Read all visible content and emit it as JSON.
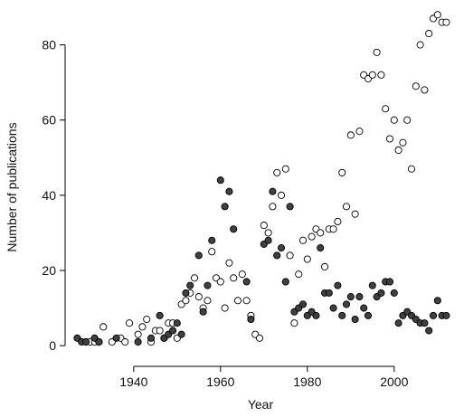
{
  "chart_data": {
    "type": "scatter",
    "xlabel": "Year",
    "ylabel": "Number of publications",
    "xlim": [
      1924.2,
      2014
    ],
    "ylim": [
      -5.5,
      90
    ],
    "xticks": [
      1940,
      1960,
      1980,
      2000
    ],
    "yticks": [
      0,
      20,
      40,
      60,
      80
    ],
    "grid": false,
    "series": [
      {
        "color": "#ffffff",
        "x": [
          1929,
          1930,
          1931,
          1932,
          1933,
          1935,
          1937,
          1938,
          1939,
          1941,
          1942,
          1943,
          1944,
          1945,
          1946,
          1947,
          1948,
          1949,
          1950,
          1951,
          1952,
          1953,
          1954,
          1955,
          1956,
          1957,
          1958,
          1959,
          1960,
          1961,
          1962,
          1963,
          1964,
          1965,
          1966,
          1967,
          1968,
          1969,
          1970,
          1971,
          1972,
          1973,
          1974,
          1975,
          1976,
          1977,
          1978,
          1979,
          1980,
          1981,
          1982,
          1983,
          1984,
          1985,
          1986,
          1987,
          1988,
          1989,
          1990,
          1991,
          1992,
          1993,
          1994,
          1995,
          1996,
          1997,
          1998,
          1999,
          2000,
          2001,
          2002,
          2003,
          2004,
          2005,
          2006,
          2007,
          2008,
          2009,
          2010,
          2011,
          2012
        ],
        "values": [
          1,
          1,
          1,
          1,
          5,
          1,
          2,
          1,
          6,
          3,
          5,
          7,
          1,
          4,
          4,
          2,
          6,
          6,
          2,
          11,
          12,
          14,
          18,
          13,
          10,
          12,
          25,
          18,
          17,
          10,
          22,
          18,
          12,
          19,
          12,
          8,
          3,
          2,
          32,
          30,
          37,
          46,
          40,
          47,
          24,
          6,
          19,
          28,
          23,
          29,
          31,
          30,
          21,
          31,
          31,
          33,
          46,
          37,
          56,
          35,
          57,
          72,
          71,
          72,
          78,
          72,
          63,
          55,
          60,
          52,
          54,
          60,
          47,
          69,
          80,
          68,
          83,
          87,
          88,
          86,
          86
        ]
      },
      {
        "color": "#404040",
        "x": [
          1927,
          1928,
          1929,
          1931,
          1932,
          1936,
          1941,
          1944,
          1946,
          1947,
          1948,
          1949,
          1950,
          1951,
          1952,
          1953,
          1955,
          1956,
          1957,
          1958,
          1960,
          1961,
          1962,
          1963,
          1966,
          1967,
          1970,
          1971,
          1972,
          1973,
          1974,
          1975,
          1976,
          1977,
          1978,
          1979,
          1980,
          1981,
          1982,
          1983,
          1984,
          1985,
          1986,
          1987,
          1988,
          1989,
          1990,
          1991,
          1992,
          1993,
          1994,
          1995,
          1996,
          1997,
          1998,
          1999,
          2000,
          2001,
          2002,
          2003,
          2004,
          2005,
          2006,
          2007,
          2008,
          2009,
          2010,
          2011,
          2012
        ],
        "values": [
          2,
          1,
          1,
          2,
          1,
          2,
          1,
          2,
          8,
          2,
          3,
          4,
          6,
          3,
          14,
          16,
          24,
          9,
          16,
          28,
          44,
          37,
          41,
          31,
          17,
          7,
          27,
          28,
          41,
          24,
          26,
          17,
          37,
          9,
          10,
          11,
          8,
          9,
          8,
          26,
          14,
          14,
          10,
          16,
          8,
          11,
          13,
          7,
          13,
          10,
          8,
          16,
          13,
          14,
          17,
          17,
          14,
          6,
          8,
          9,
          8,
          7,
          6,
          6,
          4,
          8,
          12,
          8,
          8
        ]
      }
    ]
  }
}
